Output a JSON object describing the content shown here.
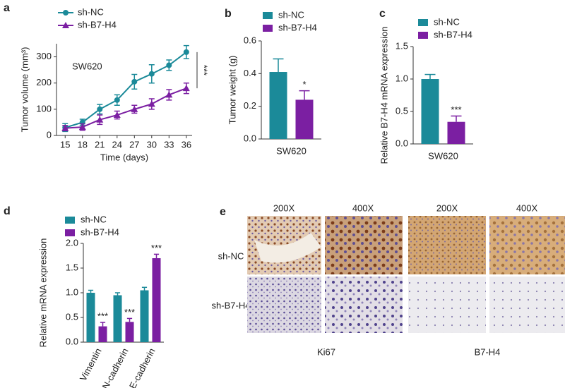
{
  "chart_data": [
    {
      "type": "line",
      "panel_label": "a",
      "xlabel": "Time (days)",
      "ylabel": "Tumor volume (mm³)",
      "x": [
        15,
        18,
        21,
        24,
        27,
        30,
        33,
        36
      ],
      "xticks": [
        15,
        18,
        21,
        24,
        27,
        30,
        33,
        36
      ],
      "xlim": [
        13.5,
        37
      ],
      "ylim": [
        0,
        350
      ],
      "yticks": [
        0,
        100,
        200,
        300
      ],
      "annotations": [
        "SW620",
        "***"
      ],
      "series": [
        {
          "name": "sh-NC",
          "color": "#1b8a99",
          "marker": "circle",
          "values": [
            30,
            50,
            100,
            135,
            205,
            235,
            268,
            318
          ],
          "errors": [
            15,
            12,
            18,
            20,
            28,
            35,
            20,
            25
          ]
        },
        {
          "name": "sh-B7-H4",
          "color": "#7b1fa2",
          "marker": "triangle",
          "values": [
            28,
            32,
            60,
            78,
            100,
            120,
            155,
            180
          ],
          "errors": [
            10,
            12,
            18,
            15,
            15,
            20,
            20,
            20
          ]
        }
      ]
    },
    {
      "type": "bar",
      "panel_label": "b",
      "ylabel": "Tumor weight (g)",
      "categories": [
        "SW620"
      ],
      "ylim": [
        0,
        0.6
      ],
      "yticks": [
        {
          "value": 0,
          "label": "0.0"
        },
        {
          "value": 0.2,
          "label": "0.2"
        },
        {
          "value": 0.4,
          "label": "0.4"
        },
        {
          "value": 0.6,
          "label": "0.6"
        }
      ],
      "series": [
        {
          "name": "sh-NC",
          "color": "#1b8a99",
          "values": [
            0.41
          ],
          "errors": [
            0.08
          ]
        },
        {
          "name": "sh-B7-H4",
          "color": "#7b1fa2",
          "values": [
            0.24
          ],
          "errors": [
            0.055
          ],
          "sig": [
            "*"
          ]
        }
      ]
    },
    {
      "type": "bar",
      "panel_label": "c",
      "ylabel": "Relative B7-H4 mRNA expression",
      "categories": [
        "SW620"
      ],
      "ylim": [
        0,
        1.5
      ],
      "yticks": [
        {
          "value": 0,
          "label": "0.0"
        },
        {
          "value": 0.5,
          "label": "0.5"
        },
        {
          "value": 1,
          "label": "1.0"
        },
        {
          "value": 1.5,
          "label": "1.5"
        }
      ],
      "series": [
        {
          "name": "sh-NC",
          "color": "#1b8a99",
          "values": [
            1.0
          ],
          "errors": [
            0.07
          ]
        },
        {
          "name": "sh-B7-H4",
          "color": "#7b1fa2",
          "values": [
            0.34
          ],
          "errors": [
            0.09
          ],
          "sig": [
            "***"
          ]
        }
      ]
    },
    {
      "type": "bar",
      "panel_label": "d",
      "ylabel": "Relative mRNA expression",
      "categories": [
        "Vimentin",
        "N-cadherin",
        "E-cadherin"
      ],
      "ylim": [
        0,
        2
      ],
      "yticks": [
        {
          "value": 0,
          "label": "0.0"
        },
        {
          "value": 0.5,
          "label": "0.5"
        },
        {
          "value": 1,
          "label": "1.0"
        },
        {
          "value": 1.5,
          "label": "1.5"
        },
        {
          "value": 2,
          "label": "2.0"
        }
      ],
      "series": [
        {
          "name": "sh-NC",
          "color": "#1b8a99",
          "values": [
            1.0,
            0.95,
            1.05
          ],
          "errors": [
            0.05,
            0.05,
            0.06
          ]
        },
        {
          "name": "sh-B7-H4",
          "color": "#7b1fa2",
          "values": [
            0.32,
            0.41,
            1.7
          ],
          "errors": [
            0.08,
            0.07,
            0.08
          ],
          "sig": [
            "***",
            "***",
            "***"
          ]
        }
      ]
    }
  ],
  "image_panel": {
    "panel_label": "e",
    "columns": [
      "200X",
      "400X",
      "200X",
      "400X"
    ],
    "rows": [
      "sh-NC",
      "sh-B7-H4"
    ],
    "groups": [
      "Ki67",
      "B7-H4"
    ]
  }
}
